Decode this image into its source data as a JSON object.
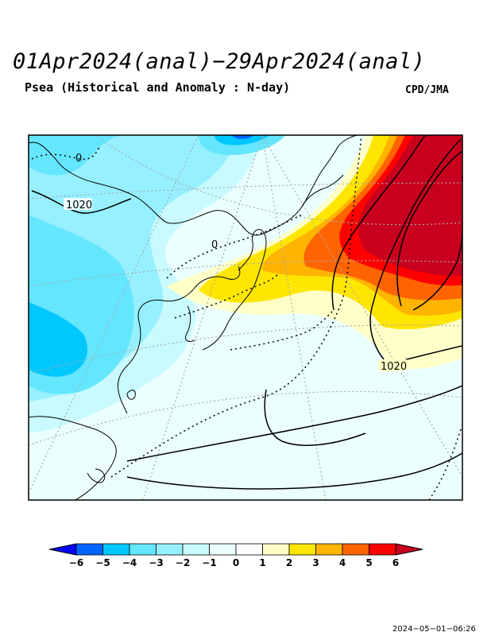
{
  "header": {
    "title": "01Apr2024(anal)−29Apr2024(anal)",
    "subtitle": "Psea (Historical and Anomaly : N-day)",
    "agency": "CPD/JMA"
  },
  "map": {
    "contour_labels": [
      {
        "text": "1020"
      },
      {
        "text": "1020"
      },
      {
        "text": "0"
      },
      {
        "text": "0"
      }
    ]
  },
  "colorbar": {
    "ticks": [
      "−6",
      "−5",
      "−4",
      "−3",
      "−2",
      "−1",
      "0",
      "1",
      "2",
      "3",
      "4",
      "5",
      "6"
    ],
    "colors": [
      "#0000ff",
      "#0064ff",
      "#00c8ff",
      "#64e6ff",
      "#96f0ff",
      "#c8faff",
      "#ebffff",
      "#ffffff",
      "#ffffc8",
      "#ffe600",
      "#ffb400",
      "#ff6400",
      "#ff0000",
      "#c8001e"
    ]
  },
  "footer": {
    "timestamp": "2024−05−01−06:26"
  }
}
